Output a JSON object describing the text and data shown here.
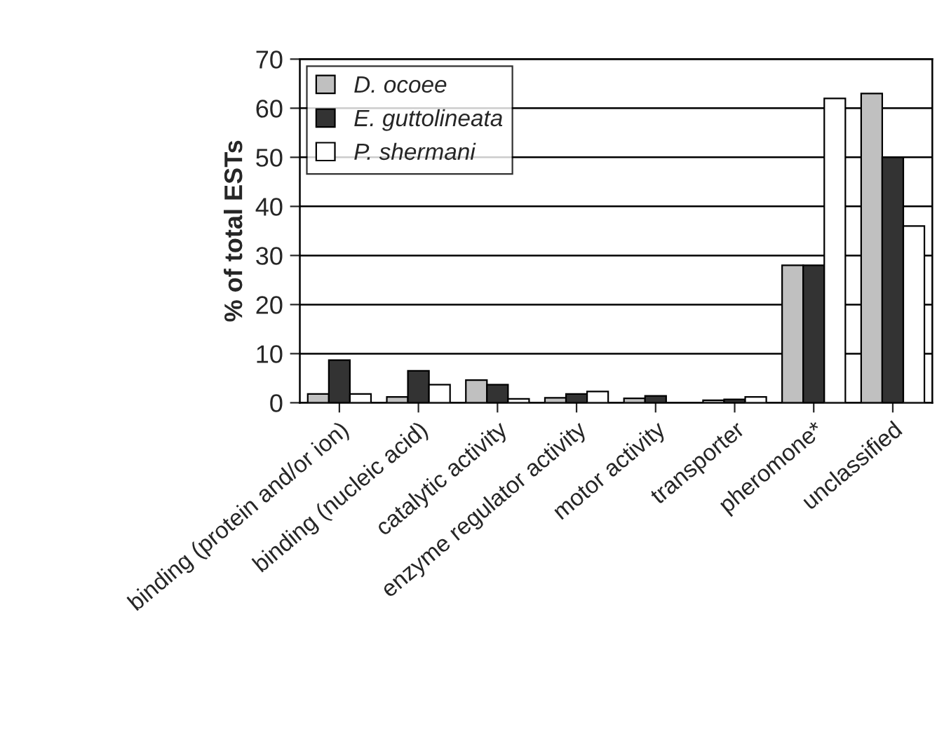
{
  "chart_data": {
    "type": "bar",
    "ylabel": "% of total ESTs",
    "categories": [
      "binding (protein and/or ion)",
      "binding (nucleic acid)",
      "catalytic activity",
      "enzyme regulator activity",
      "motor activity",
      "transporter",
      "pheromone*",
      "unclassified"
    ],
    "series": [
      {
        "name": "D. ocoee",
        "color": "#c0c0c0",
        "values": [
          1.8,
          1.2,
          4.6,
          1.0,
          0.9,
          0.5,
          28,
          63
        ]
      },
      {
        "name": "E. guttolineata",
        "color": "#333333",
        "values": [
          8.7,
          6.5,
          3.7,
          1.8,
          1.4,
          0.7,
          28,
          50
        ]
      },
      {
        "name": "P. shermani",
        "color": "#ffffff",
        "values": [
          1.8,
          3.7,
          0.8,
          2.3,
          null,
          1.2,
          62,
          36
        ]
      }
    ],
    "ylim": [
      0,
      70
    ],
    "yticks": [
      0,
      10,
      20,
      30,
      40,
      50,
      60,
      70
    ],
    "grid": "y",
    "legend": "top left"
  }
}
